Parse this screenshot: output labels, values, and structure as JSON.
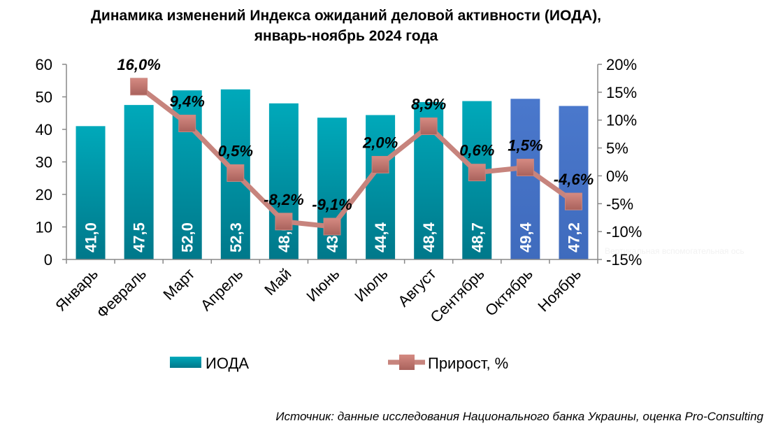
{
  "chart_data": {
    "type": "bar",
    "title": "Динамика изменений Индекса ожиданий деловой активности (ИОДА), январь-ноябрь 2024 года",
    "title_lines": [
      "Динамика изменений Индекса ожиданий деловой активности (ИОДА),",
      "январь-ноябрь 2024 года"
    ],
    "categories": [
      "Январь",
      "Февраль",
      "Март",
      "Апрель",
      "Май",
      "Июнь",
      "Июль",
      "Август",
      "Сентябрь",
      "Октябрь",
      "Ноябрь"
    ],
    "series": [
      {
        "name": "ИОДА",
        "type": "bar",
        "axis": "left",
        "values": [
          41.0,
          47.5,
          52.0,
          52.3,
          48.0,
          43.6,
          44.4,
          48.4,
          48.7,
          49.4,
          47.2
        ],
        "labels": [
          "41,0",
          "47,5",
          "52,0",
          "52,3",
          "48,0",
          "43,6",
          "44,4",
          "48,4",
          "48,7",
          "49,4",
          "47,2"
        ],
        "color": "#0aa3b4",
        "highlight_color": "#4472c4",
        "highlight_indices": [
          9,
          10
        ]
      },
      {
        "name": "Прирост, %",
        "type": "line",
        "axis": "right",
        "values": [
          null,
          16.0,
          9.4,
          0.5,
          -8.2,
          -9.1,
          2.0,
          8.9,
          0.6,
          1.5,
          -4.6
        ],
        "labels": [
          "",
          "16,0%",
          "9,4%",
          "0,5%",
          "-8,2%",
          "-9,1%",
          "2,0%",
          "8,9%",
          "0,6%",
          "1,5%",
          "-4,6%"
        ],
        "color": "#c77f79"
      }
    ],
    "y_left": {
      "min": 0,
      "max": 60,
      "ticks": [
        "0",
        "10",
        "20",
        "30",
        "40",
        "50",
        "60"
      ]
    },
    "y_right": {
      "min": -15,
      "max": 20,
      "ticks": [
        "-15%",
        "-10%",
        "-5%",
        "0%",
        "5%",
        "10%",
        "15%",
        "20%"
      ],
      "hint": "Вертикальная вспомогательная ось"
    },
    "grid": false,
    "legend": "bottom"
  },
  "source": "Источник: данные исследования Национального банка Украины, оценка Pro-Consulting"
}
